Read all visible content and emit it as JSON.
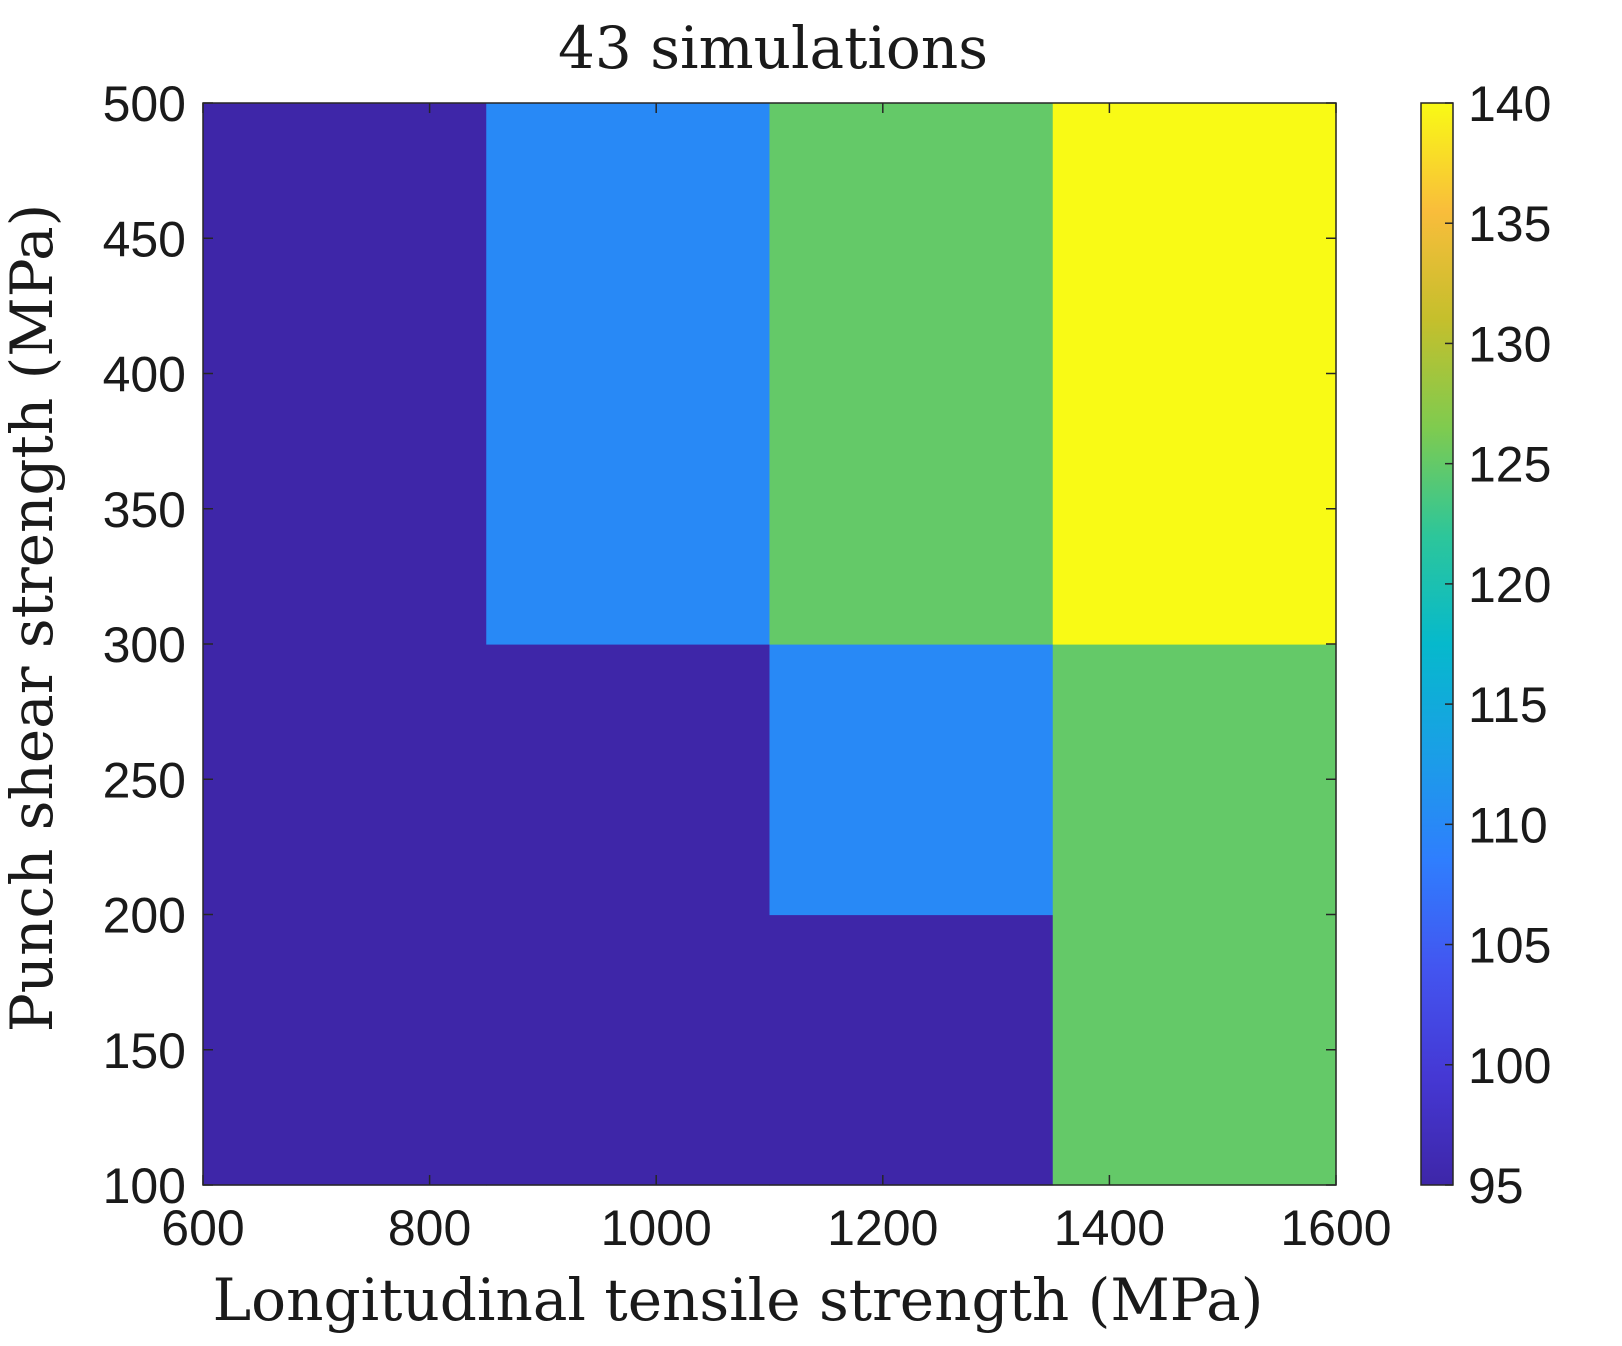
{
  "chart_data": {
    "type": "heatmap",
    "title": "43 simulations",
    "xlabel": "Longitudinal tensile strength (MPa)",
    "ylabel": "Punch shear strength (MPa)",
    "xlim": [
      600,
      1600
    ],
    "ylim": [
      100,
      500
    ],
    "xticks": [
      "600",
      "800",
      "1000",
      "1200",
      "1400",
      "1600"
    ],
    "yticks": [
      "100",
      "150",
      "200",
      "250",
      "300",
      "350",
      "400",
      "450",
      "500"
    ],
    "colorbar": {
      "range": [
        95,
        140
      ],
      "ticks": [
        "95",
        "100",
        "105",
        "110",
        "115",
        "120",
        "125",
        "130",
        "135",
        "140"
      ],
      "colormap": "parula"
    },
    "regions": [
      {
        "x": [
          600,
          850
        ],
        "y": [
          100,
          500
        ],
        "value": 95
      },
      {
        "x": [
          850,
          1100
        ],
        "y": [
          100,
          300
        ],
        "value": 95
      },
      {
        "x": [
          1100,
          1350
        ],
        "y": [
          100,
          200
        ],
        "value": 95
      },
      {
        "x": [
          850,
          1100
        ],
        "y": [
          300,
          500
        ],
        "value": 110
      },
      {
        "x": [
          1100,
          1350
        ],
        "y": [
          200,
          300
        ],
        "value": 110
      },
      {
        "x": [
          1100,
          1350
        ],
        "y": [
          300,
          500
        ],
        "value": 125
      },
      {
        "x": [
          1350,
          1600
        ],
        "y": [
          100,
          300
        ],
        "value": 125
      },
      {
        "x": [
          1350,
          1600
        ],
        "y": [
          300,
          500
        ],
        "value": 140
      }
    ]
  },
  "colors": {
    "parula": [
      "#3e26a8",
      "#4538d4",
      "#4355f0",
      "#2f7efe",
      "#1a9fe6",
      "#06b9cc",
      "#2dc69a",
      "#7fcb4f",
      "#c5bf2c",
      "#f9bd3b",
      "#f9fa15"
    ]
  }
}
